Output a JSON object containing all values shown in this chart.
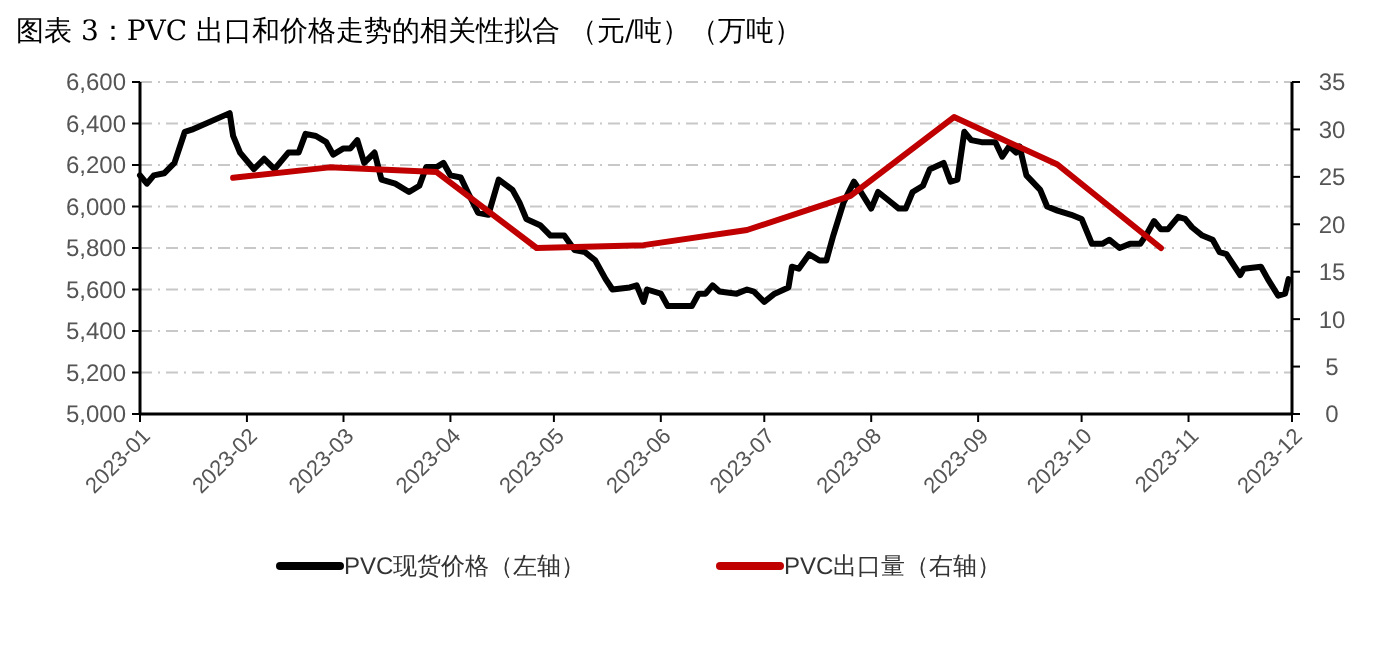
{
  "chart_data": {
    "type": "line",
    "title": "图表 3：PVC 出口和价格走势的相关性拟合 （元/吨）（万吨）",
    "series": [
      {
        "name": "PVC现货价格（左轴）",
        "color": "#000000",
        "x": [
          "2023-01-01",
          "2023-01-03",
          "2023-01-05",
          "2023-01-08",
          "2023-01-11",
          "2023-01-14",
          "2023-01-16",
          "2023-01-27",
          "2023-01-28",
          "2023-01-30",
          "2023-02-03",
          "2023-02-06",
          "2023-02-09",
          "2023-02-13",
          "2023-02-16",
          "2023-02-18",
          "2023-02-21",
          "2023-02-24",
          "2023-02-26",
          "2023-03-01",
          "2023-03-03",
          "2023-03-05",
          "2023-03-07",
          "2023-03-10",
          "2023-03-12",
          "2023-03-16",
          "2023-03-20",
          "2023-03-23",
          "2023-03-25",
          "2023-03-28",
          "2023-03-30",
          "2023-04-01",
          "2023-04-04",
          "2023-04-06",
          "2023-04-09",
          "2023-04-12",
          "2023-04-15",
          "2023-04-19",
          "2023-04-21",
          "2023-04-23",
          "2023-04-27",
          "2023-04-30",
          "2023-05-04",
          "2023-05-07",
          "2023-05-10",
          "2023-05-13",
          "2023-05-16",
          "2023-05-18",
          "2023-05-23",
          "2023-05-25",
          "2023-05-27",
          "2023-05-28",
          "2023-06-01",
          "2023-06-03",
          "2023-06-10",
          "2023-06-12",
          "2023-06-14",
          "2023-06-16",
          "2023-06-18",
          "2023-06-23",
          "2023-06-26",
          "2023-06-28",
          "2023-07-01",
          "2023-07-04",
          "2023-07-08",
          "2023-07-09",
          "2023-07-11",
          "2023-07-14",
          "2023-07-17",
          "2023-07-19",
          "2023-07-21",
          "2023-07-24",
          "2023-07-27",
          "2023-07-29",
          "2023-08-01",
          "2023-08-03",
          "2023-08-06",
          "2023-08-09",
          "2023-08-11",
          "2023-08-13",
          "2023-08-16",
          "2023-08-18",
          "2023-08-22",
          "2023-08-24",
          "2023-08-26",
          "2023-08-28",
          "2023-08-30",
          "2023-09-02",
          "2023-09-06",
          "2023-09-08",
          "2023-09-10",
          "2023-09-12",
          "2023-09-13",
          "2023-09-15",
          "2023-09-19",
          "2023-09-21",
          "2023-09-24",
          "2023-09-28",
          "2023-10-01",
          "2023-10-04",
          "2023-10-07",
          "2023-10-09",
          "2023-10-12",
          "2023-10-15",
          "2023-10-18",
          "2023-10-20",
          "2023-10-22",
          "2023-10-24",
          "2023-10-26",
          "2023-10-29",
          "2023-10-31",
          "2023-11-02",
          "2023-11-05",
          "2023-11-08",
          "2023-11-10",
          "2023-11-12",
          "2023-11-16",
          "2023-11-17",
          "2023-11-22",
          "2023-11-24",
          "2023-11-27",
          "2023-11-29",
          "2023-11-30"
        ],
        "values": [
          6150,
          6110,
          6150,
          6160,
          6210,
          6360,
          6370,
          6450,
          6340,
          6260,
          6180,
          6230,
          6180,
          6260,
          6260,
          6350,
          6340,
          6310,
          6250,
          6280,
          6280,
          6320,
          6210,
          6260,
          6130,
          6110,
          6070,
          6100,
          6190,
          6190,
          6210,
          6150,
          6140,
          6070,
          5970,
          5960,
          6130,
          6080,
          6020,
          5940,
          5910,
          5860,
          5860,
          5790,
          5780,
          5740,
          5650,
          5600,
          5610,
          5620,
          5540,
          5600,
          5580,
          5520,
          5520,
          5580,
          5580,
          5620,
          5590,
          5580,
          5600,
          5590,
          5540,
          5580,
          5610,
          5710,
          5700,
          5770,
          5740,
          5740,
          5860,
          6020,
          6120,
          6070,
          5990,
          6070,
          6030,
          5990,
          5990,
          6070,
          6100,
          6180,
          6210,
          6120,
          6130,
          6360,
          6320,
          6310,
          6310,
          6240,
          6290,
          6260,
          6290,
          6150,
          6080,
          6000,
          5980,
          5960,
          5940,
          5820,
          5820,
          5840,
          5800,
          5820,
          5820,
          5870,
          5930,
          5890,
          5890,
          5950,
          5940,
          5900,
          5860,
          5840,
          5780,
          5770,
          5670,
          5700,
          5710,
          5650,
          5570,
          5580,
          5650
        ]
      },
      {
        "name": "PVC出口量（右轴）",
        "color": "#c00000",
        "axis": "y2",
        "x": [
          "2023-01-28",
          "2023-02-25",
          "2023-03-28",
          "2023-04-26",
          "2023-05-27",
          "2023-06-26",
          "2023-07-26",
          "2023-08-25",
          "2023-09-24",
          "2023-10-24"
        ],
        "values": [
          24.9,
          26.0,
          25.5,
          17.5,
          17.8,
          19.4,
          23.0,
          31.3,
          26.3,
          17.5
        ]
      }
    ],
    "xlim": [
      "2023-01-01",
      "2023-12-01"
    ],
    "xticks": [
      "2023-01",
      "2023-02",
      "2023-03",
      "2023-04",
      "2023-05",
      "2023-06",
      "2023-07",
      "2023-08",
      "2023-09",
      "2023-10",
      "2023-11",
      "2023-12"
    ],
    "ylim": [
      5000,
      6600
    ],
    "yticks": [
      {
        "value": 5000,
        "label": "5,000"
      },
      {
        "value": 5200,
        "label": "5,200"
      },
      {
        "value": 5400,
        "label": "5,400"
      },
      {
        "value": 5600,
        "label": "5,600"
      },
      {
        "value": 5800,
        "label": "5,800"
      },
      {
        "value": 6000,
        "label": "6,000"
      },
      {
        "value": 6200,
        "label": "6,200"
      },
      {
        "value": 6400,
        "label": "6,400"
      },
      {
        "value": 6600,
        "label": "6,600"
      }
    ],
    "y2lim": [
      0,
      35
    ],
    "y2ticks": [
      0,
      5,
      10,
      15,
      20,
      25,
      30,
      35
    ],
    "grid": "y",
    "legend": "bottom",
    "marker": "none",
    "line_style": "solid"
  }
}
